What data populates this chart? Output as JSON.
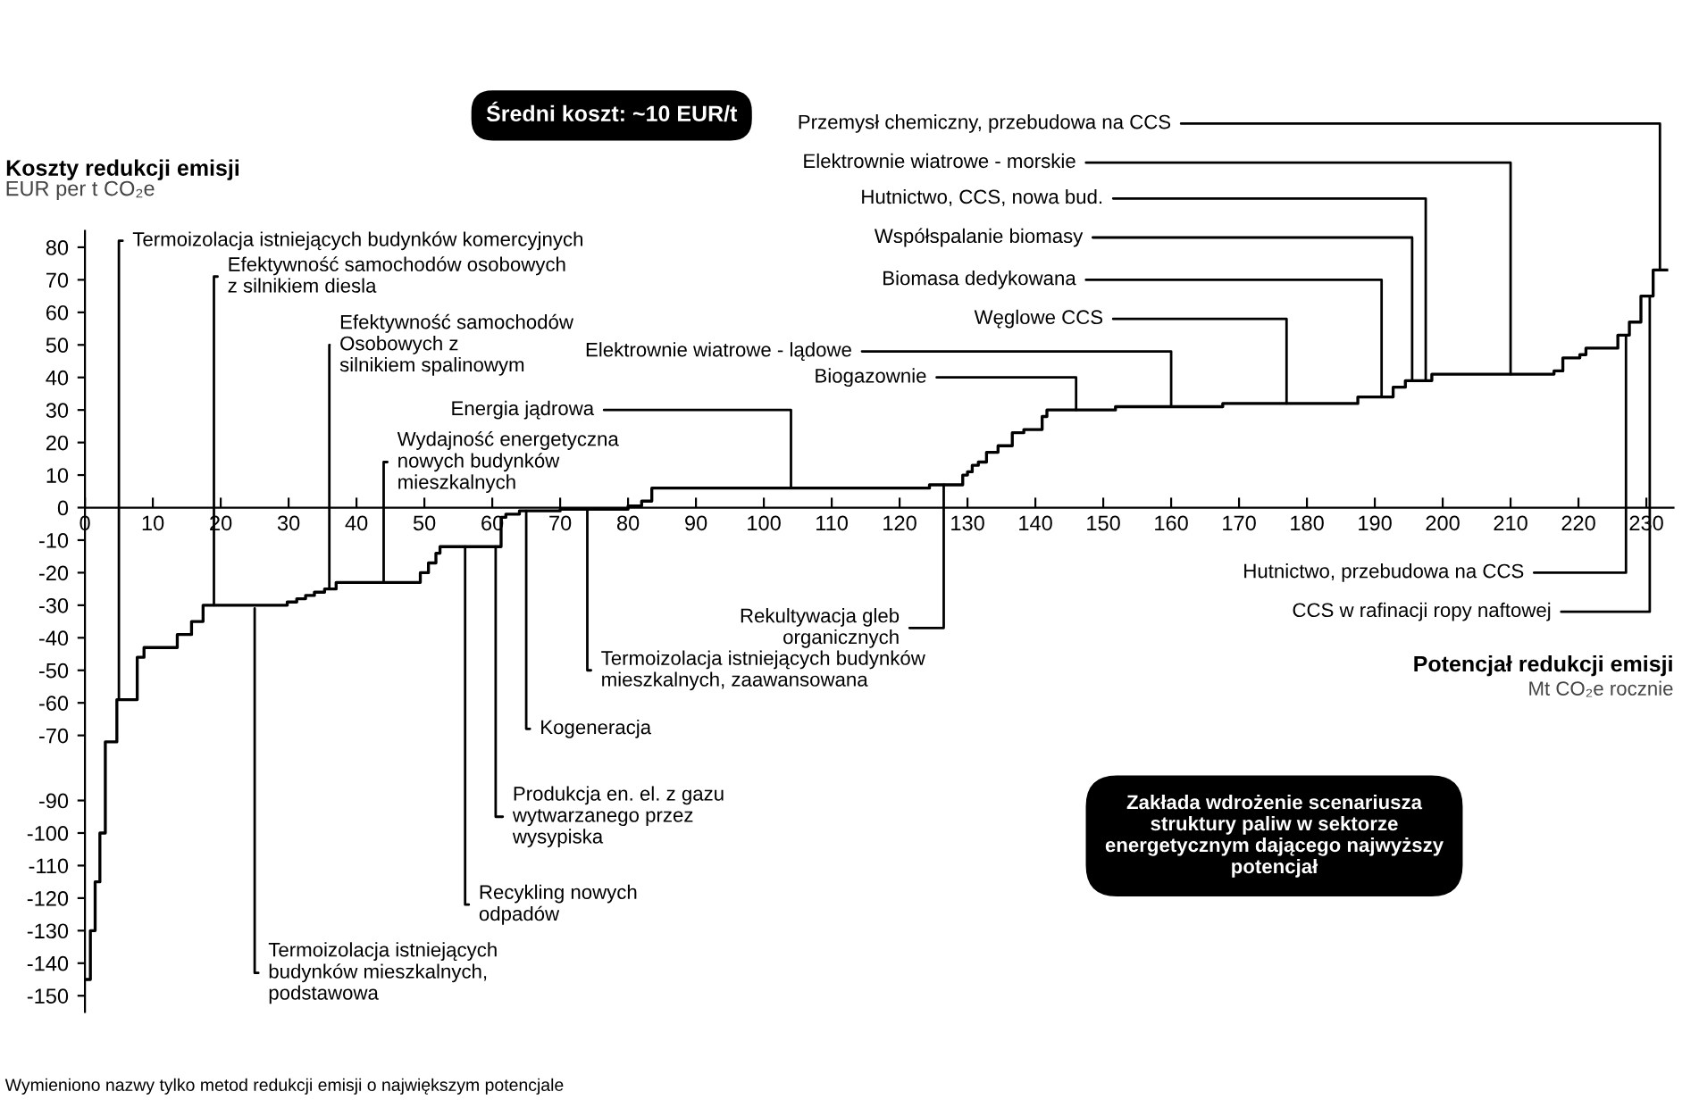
{
  "chart_data": {
    "type": "step",
    "title": "Średni koszt: ~10 EUR/t",
    "ylabel": "Koszty redukcji emisji",
    "xlabel": "Potencjał redukcji emisji",
    "series": [
      {
        "color": "#000000",
        "x": [
          0,
          0.8,
          1.5,
          2.2,
          3,
          4.7,
          7.7,
          8.7,
          13.6,
          15.7,
          17.4,
          29.8,
          31.2,
          32.5,
          33.8,
          35.3,
          37,
          49.4,
          50.6,
          51.7,
          52.3,
          61.3,
          62,
          64,
          70,
          80,
          82,
          83.5,
          124.4,
          129.3,
          130,
          130.7,
          131.6,
          132.8,
          134.5,
          136.6,
          138.3,
          139.7,
          141,
          141.7,
          151.8,
          167.6,
          187.5,
          192.7,
          194.5,
          196.7,
          198.4,
          216.4,
          217.7,
          220.2,
          221.1,
          225.8,
          227.5,
          229.2,
          231,
          233
        ],
        "values": [
          -145,
          -130,
          -115,
          -100,
          -72,
          -59,
          -46,
          -43,
          -39,
          -35,
          -30,
          -29,
          -28,
          -27,
          -26,
          -25,
          -23,
          -20,
          -17,
          -14,
          -12,
          -3,
          -2,
          -1,
          -0.5,
          0.5,
          2,
          6,
          7,
          10,
          11,
          13,
          14,
          17,
          19,
          23,
          24,
          24,
          28,
          30,
          31,
          32,
          34,
          37,
          39,
          39,
          41,
          42,
          46,
          47,
          49,
          53,
          57,
          65,
          73,
          73
        ]
      }
    ],
    "xlim": [
      0,
      234
    ],
    "xticks": [
      0,
      10,
      20,
      30,
      40,
      50,
      60,
      70,
      80,
      90,
      100,
      110,
      120,
      130,
      140,
      150,
      160,
      170,
      180,
      190,
      200,
      210,
      220,
      230
    ],
    "ylim": [
      -155,
      85
    ],
    "yticks": [
      80,
      70,
      60,
      50,
      40,
      30,
      20,
      10,
      0,
      -10,
      -20,
      -30,
      -40,
      -50,
      -60,
      -70,
      -90,
      -100,
      -110,
      -120,
      -130,
      -140,
      -150
    ],
    "grid": false,
    "annotations": [
      "EUR per t CO₂e",
      "Mt CO₂e rocznie",
      "Zakłada wdrożenie scenariusza\nstruktury paliw w sektorze\nenergetycznym dającego najwyższy\npotencjał",
      "Wymieniono nazwy tylko metod redukcji emisji o największym potencjale",
      {
        "text": "Termoizolacja istniejących budynków komercyjnych",
        "x": 5,
        "y": -59
      },
      {
        "text": "Efektywność samochodów osobowych\nz silnikiem diesla",
        "x": 19,
        "y": -30
      },
      {
        "text": "Efektywność samochodów\nOsobowych z\nsilnikiem spalinowym",
        "x": 36,
        "y": -25
      },
      {
        "text": "Wydajność energetyczna\nnowych budynków\nmieszkalnych",
        "x": 44,
        "y": -23
      },
      {
        "text": "Energia jądrowa",
        "x": 104,
        "y": 6
      },
      {
        "text": "Elektrownie wiatrowe - lądowe",
        "x": 160,
        "y": 31
      },
      {
        "text": "Biogazownie",
        "x": 146,
        "y": 30
      },
      {
        "text": "Węglowe CCS",
        "x": 177,
        "y": 32
      },
      {
        "text": "Biomasa dedykowana",
        "x": 191,
        "y": 34
      },
      {
        "text": "Współspalanie biomasy",
        "x": 195.5,
        "y": 39
      },
      {
        "text": "Hutnictwo, CCS, nowa bud.",
        "x": 197.5,
        "y": 39
      },
      {
        "text": "Elektrownie wiatrowe - morskie",
        "x": 210,
        "y": 41
      },
      {
        "text": "Przemysł chemiczny, przebudowa na CCS",
        "x": 232,
        "y": 73
      },
      {
        "text": "Hutnictwo, przebudowa na CCS",
        "x": 227,
        "y": 53
      },
      {
        "text": "CCS w rafinacji ropy naftowej",
        "x": 230.5,
        "y": 65
      },
      {
        "text": "Rekultywacja gleb\norganicznych",
        "x": 126.5,
        "y": 7
      },
      {
        "text": "Termoizolacja istniejących budynków\nmieszkalnych, zaawansowana",
        "x": 74,
        "y": -0.5
      },
      {
        "text": "Kogeneracja",
        "x": 65,
        "y": -1
      },
      {
        "text": "Produkcja en. el. z gazu\nwytwarzanego przez\nwysypiska",
        "x": 60.5,
        "y": -12
      },
      {
        "text": "Recykling nowych\nodpadów",
        "x": 56,
        "y": -12
      },
      {
        "text": "Termoizolacja istniejących\nbudynków mieszkalnych,\npodstawowa",
        "x": 25,
        "y": -31
      }
    ]
  }
}
